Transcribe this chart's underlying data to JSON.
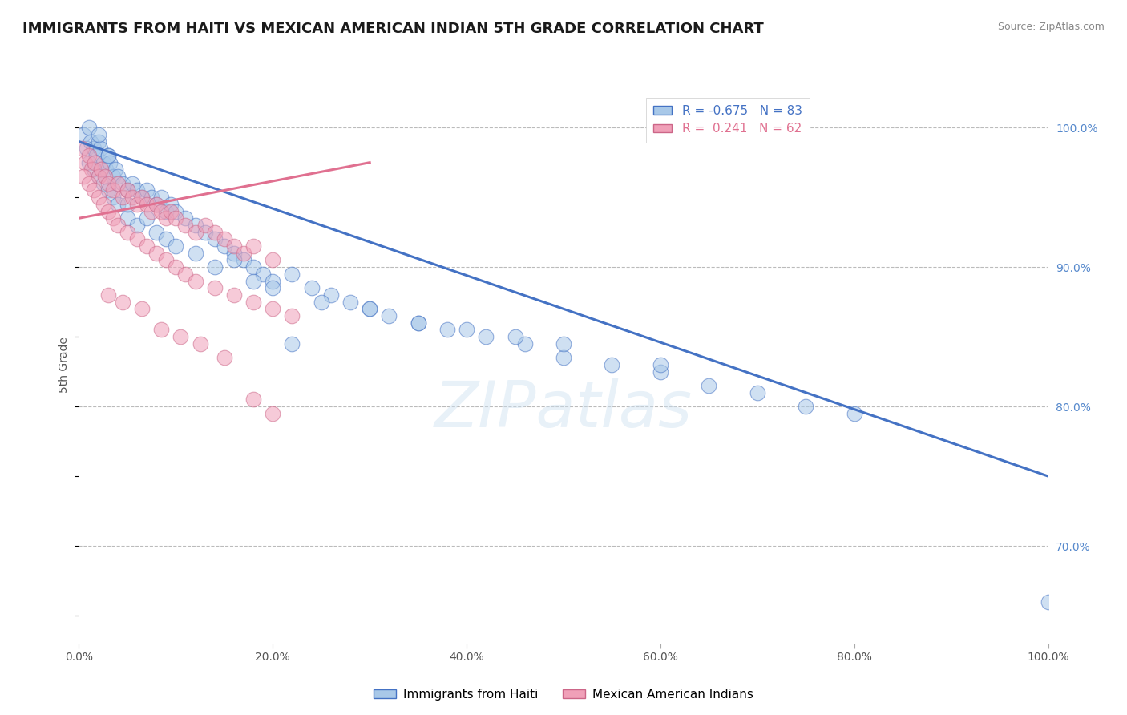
{
  "title": "IMMIGRANTS FROM HAITI VS MEXICAN AMERICAN INDIAN 5TH GRADE CORRELATION CHART",
  "source": "Source: ZipAtlas.com",
  "ylabel": "5th Grade",
  "legend1_label": "Immigrants from Haiti",
  "legend2_label": "Mexican American Indians",
  "r1": -0.675,
  "n1": 83,
  "r2": 0.241,
  "n2": 62,
  "color_blue": "#a8c8e8",
  "color_pink": "#f0a0b8",
  "color_blue_line": "#4472c4",
  "color_pink_line": "#e07090",
  "xlim": [
    0.0,
    100.0
  ],
  "ylim": [
    63.0,
    103.0
  ],
  "yticks": [
    70.0,
    80.0,
    90.0,
    100.0
  ],
  "xticks": [
    0.0,
    20.0,
    40.0,
    60.0,
    80.0,
    100.0
  ],
  "watermark": "ZIPatlas",
  "blue_line_x": [
    0,
    100
  ],
  "blue_line_y": [
    99.0,
    75.0
  ],
  "pink_line_x": [
    0,
    30
  ],
  "pink_line_y": [
    93.5,
    97.5
  ],
  "blue_scatter_x": [
    0.5,
    0.8,
    1.0,
    1.2,
    1.5,
    1.8,
    2.0,
    2.2,
    2.5,
    2.8,
    3.0,
    3.2,
    3.5,
    3.8,
    4.0,
    4.5,
    5.0,
    5.5,
    6.0,
    6.5,
    7.0,
    7.5,
    8.0,
    8.5,
    9.0,
    9.5,
    10.0,
    11.0,
    12.0,
    13.0,
    14.0,
    15.0,
    16.0,
    17.0,
    18.0,
    19.0,
    20.0,
    22.0,
    24.0,
    26.0,
    28.0,
    30.0,
    32.0,
    35.0,
    38.0,
    42.0,
    46.0,
    50.0,
    55.0,
    60.0,
    65.0,
    70.0,
    75.0,
    80.0,
    1.0,
    1.5,
    2.0,
    2.5,
    3.0,
    3.5,
    4.0,
    5.0,
    6.0,
    7.0,
    8.0,
    9.0,
    10.0,
    12.0,
    14.0,
    16.0,
    18.0,
    20.0,
    25.0,
    30.0,
    35.0,
    40.0,
    45.0,
    50.0,
    60.0,
    100.0,
    2.0,
    3.0,
    5.0,
    22.0
  ],
  "blue_scatter_y": [
    99.5,
    98.5,
    100.0,
    99.0,
    98.5,
    98.0,
    99.0,
    98.5,
    97.5,
    97.0,
    98.0,
    97.5,
    96.5,
    97.0,
    96.5,
    96.0,
    95.5,
    96.0,
    95.5,
    95.0,
    95.5,
    95.0,
    94.5,
    95.0,
    94.0,
    94.5,
    94.0,
    93.5,
    93.0,
    92.5,
    92.0,
    91.5,
    91.0,
    90.5,
    90.0,
    89.5,
    89.0,
    89.5,
    88.5,
    88.0,
    87.5,
    87.0,
    86.5,
    86.0,
    85.5,
    85.0,
    84.5,
    83.5,
    83.0,
    82.5,
    81.5,
    81.0,
    80.0,
    79.5,
    97.5,
    97.0,
    96.5,
    96.0,
    95.5,
    95.0,
    94.5,
    93.5,
    93.0,
    93.5,
    92.5,
    92.0,
    91.5,
    91.0,
    90.0,
    90.5,
    89.0,
    88.5,
    87.5,
    87.0,
    86.0,
    85.5,
    85.0,
    84.5,
    83.0,
    66.0,
    99.5,
    98.0,
    94.5,
    84.5
  ],
  "pink_scatter_x": [
    0.3,
    0.6,
    1.0,
    1.3,
    1.6,
    2.0,
    2.3,
    2.7,
    3.0,
    3.5,
    4.0,
    4.5,
    5.0,
    5.5,
    6.0,
    6.5,
    7.0,
    7.5,
    8.0,
    8.5,
    9.0,
    9.5,
    10.0,
    11.0,
    12.0,
    13.0,
    14.0,
    15.0,
    16.0,
    17.0,
    18.0,
    20.0,
    0.5,
    1.0,
    1.5,
    2.0,
    2.5,
    3.0,
    3.5,
    4.0,
    5.0,
    6.0,
    7.0,
    8.0,
    9.0,
    10.0,
    11.0,
    12.0,
    14.0,
    16.0,
    18.0,
    20.0,
    22.0,
    3.0,
    4.5,
    6.5,
    8.5,
    10.5,
    12.5,
    15.0,
    18.0,
    20.0
  ],
  "pink_scatter_y": [
    98.5,
    97.5,
    98.0,
    97.0,
    97.5,
    96.5,
    97.0,
    96.5,
    96.0,
    95.5,
    96.0,
    95.0,
    95.5,
    95.0,
    94.5,
    95.0,
    94.5,
    94.0,
    94.5,
    94.0,
    93.5,
    94.0,
    93.5,
    93.0,
    92.5,
    93.0,
    92.5,
    92.0,
    91.5,
    91.0,
    91.5,
    90.5,
    96.5,
    96.0,
    95.5,
    95.0,
    94.5,
    94.0,
    93.5,
    93.0,
    92.5,
    92.0,
    91.5,
    91.0,
    90.5,
    90.0,
    89.5,
    89.0,
    88.5,
    88.0,
    87.5,
    87.0,
    86.5,
    88.0,
    87.5,
    87.0,
    85.5,
    85.0,
    84.5,
    83.5,
    80.5,
    79.5
  ]
}
